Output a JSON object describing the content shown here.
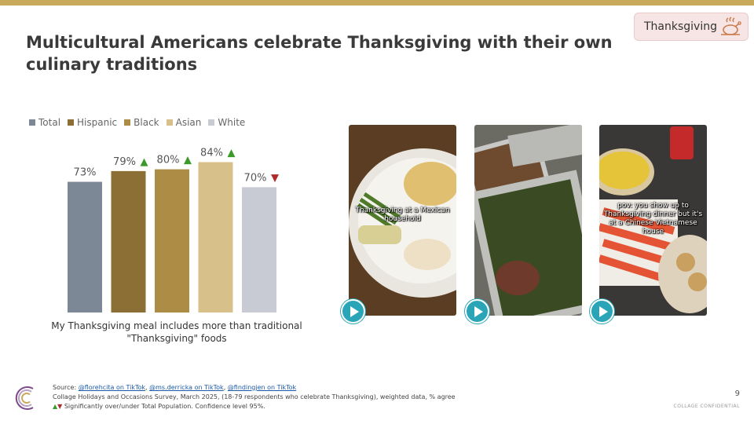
{
  "title": "Multicultural Americans celebrate Thanksgiving with their own culinary traditions",
  "tag": {
    "label": "Thanksgiving",
    "icon": "roast-turkey-icon"
  },
  "colors": {
    "accent_bar": "#c9a95c",
    "up_arrow": "#3a9a2a",
    "down_arrow": "#b02a2a",
    "play_button": "#2aa5b8"
  },
  "chart_data": {
    "type": "bar",
    "categories": [
      "Total",
      "Hispanic",
      "Black",
      "Asian",
      "White"
    ],
    "values": [
      73,
      79,
      80,
      84,
      70
    ],
    "value_labels": [
      "73%",
      "79%",
      "80%",
      "84%",
      "70%"
    ],
    "significance": [
      "",
      "up",
      "up",
      "up",
      "down"
    ],
    "colors": [
      "#7d8896",
      "#8b6f35",
      "#ad8d45",
      "#d8c08b",
      "#c8cbd3"
    ],
    "legend": [
      "Total",
      "Hispanic",
      "Black",
      "Asian",
      "White"
    ],
    "legend_position": "top-left",
    "xlabel": "My Thanksgiving meal includes more than traditional \"Thanksgiving\" foods",
    "ylabel": "",
    "ylim": [
      0,
      100
    ],
    "grid": false,
    "up_symbol": "▲",
    "down_symbol": "▼"
  },
  "videos": [
    {
      "caption": "Thanksgiving at a Mexican household",
      "play_icon": "play-icon"
    },
    {
      "caption": "",
      "play_icon": "play-icon"
    },
    {
      "caption": "pov: you show up to Thanksgiving dinner but it's at a Chinese Vietnamese house",
      "play_icon": "play-icon"
    }
  ],
  "footer": {
    "source_prefix": "Source: ",
    "link1": "@florehcita on TikTok",
    "sep1": ", ",
    "link2": "@ms.derricka on TikTok",
    "sep2": ", ",
    "link3": "@findingjen on TikTok",
    "survey": "Collage Holidays and Occasions Survey, March 2025, (18-79 respondents who celebrate Thanksgiving), weighted data, % agree",
    "sig_up": "▲",
    "sig_down": "▼",
    "sig_note": " Significantly over/under Total Population. Confidence level 95%.",
    "page_number": "9",
    "confidential": "COLLAGE CONFIDENTIAL"
  }
}
